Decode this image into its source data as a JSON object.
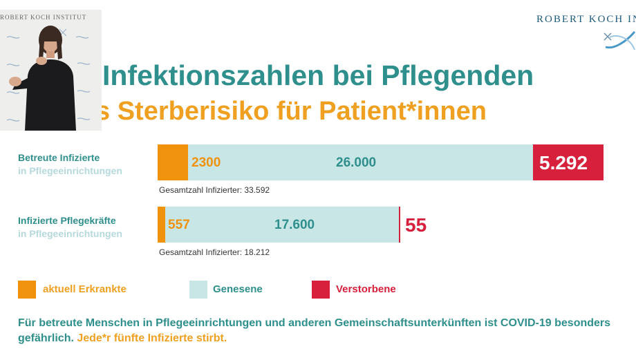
{
  "header": {
    "logo_text": "ROBERT KOCH IN",
    "video_banner": "ROBERT KOCH INSTITUT"
  },
  "title": {
    "line1": "Infektionszahlen bei Pflegenden",
    "line2": "s Sterberisiko für Patient*innen"
  },
  "chart_data": {
    "type": "bar",
    "stacked": true,
    "orientation": "horizontal",
    "categories": [
      {
        "line1": "Betreute Infizierte",
        "line2": "in Pflegeeinrichtungen"
      },
      {
        "line1": "Infizierte Pflegekräfte",
        "line2": "in Pflegeeinrichtungen"
      }
    ],
    "series": [
      {
        "name": "aktuell Erkrankte",
        "color": "#f0920c",
        "values": [
          2300,
          557
        ],
        "labels": [
          "2300",
          "557"
        ]
      },
      {
        "name": "Genesene",
        "color": "#c9e6e7",
        "values": [
          26000,
          17600
        ],
        "labels": [
          "26.000",
          "17.600"
        ]
      },
      {
        "name": "Verstorbene",
        "color": "#d6203c",
        "values": [
          5292,
          55
        ],
        "labels": [
          "5.292",
          "55"
        ]
      }
    ],
    "totals": [
      "Gesamtzahl Infizierter: 33.592",
      "Gesamtzahl Infizierter: 18.212"
    ],
    "total_values": [
      33592,
      18212
    ],
    "legend_position": "bottom"
  },
  "footer": {
    "text": "Für betreute Menschen in Pflegeeinrichtungen und anderen Gemeinschaftsunterkünften  ist COVID-19 besonders gefährlich.",
    "highlight": "Jede*r fünfte Infizierte stirbt."
  },
  "colors": {
    "teal": "#2e8f8c",
    "light_teal": "#b5d9dc",
    "orange": "#f0a020",
    "red": "#d6203c"
  }
}
